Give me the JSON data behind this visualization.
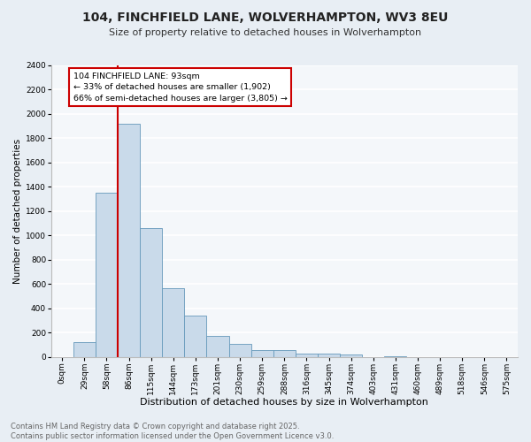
{
  "title": "104, FINCHFIELD LANE, WOLVERHAMPTON, WV3 8EU",
  "subtitle": "Size of property relative to detached houses in Wolverhampton",
  "xlabel": "Distribution of detached houses by size in Wolverhampton",
  "ylabel": "Number of detached properties",
  "bar_labels": [
    "0sqm",
    "29sqm",
    "58sqm",
    "86sqm",
    "115sqm",
    "144sqm",
    "173sqm",
    "201sqm",
    "230sqm",
    "259sqm",
    "288sqm",
    "316sqm",
    "345sqm",
    "374sqm",
    "403sqm",
    "431sqm",
    "460sqm",
    "489sqm",
    "518sqm",
    "546sqm",
    "575sqm"
  ],
  "bar_heights": [
    0,
    125,
    1350,
    1920,
    1060,
    565,
    340,
    170,
    105,
    60,
    60,
    30,
    30,
    20,
    0,
    5,
    0,
    0,
    0,
    0,
    0
  ],
  "bar_color": "#c9daea",
  "bar_edge_color": "#6699bb",
  "vline_color": "#cc0000",
  "ylim": [
    0,
    2400
  ],
  "yticks": [
    0,
    200,
    400,
    600,
    800,
    1000,
    1200,
    1400,
    1600,
    1800,
    2000,
    2200,
    2400
  ],
  "annotation_title": "104 FINCHFIELD LANE: 93sqm",
  "annotation_line1": "← 33% of detached houses are smaller (1,902)",
  "annotation_line2": "66% of semi-detached houses are larger (3,805) →",
  "annotation_box_facecolor": "#ffffff",
  "annotation_box_edgecolor": "#cc0000",
  "footer_line1": "Contains HM Land Registry data © Crown copyright and database right 2025.",
  "footer_line2": "Contains public sector information licensed under the Open Government Licence v3.0.",
  "bg_color": "#e8eef4",
  "plot_bg_color": "#f4f7fa",
  "grid_color": "#ffffff",
  "title_fontsize": 10,
  "subtitle_fontsize": 8,
  "xlabel_fontsize": 8,
  "ylabel_fontsize": 7.5,
  "tick_fontsize": 6.5,
  "annotation_fontsize": 6.8,
  "footer_fontsize": 6
}
